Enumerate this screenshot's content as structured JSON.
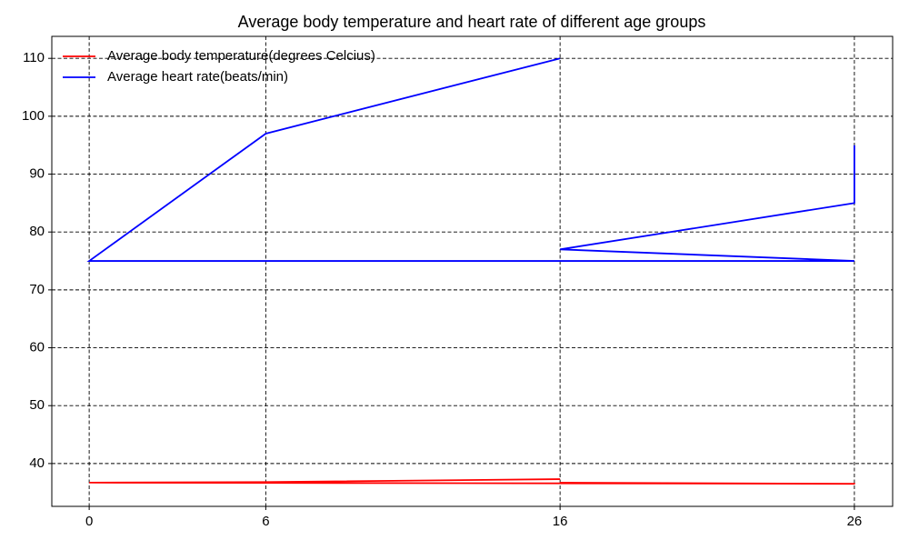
{
  "chart_data": {
    "type": "line",
    "title": "Average body temperature and heart rate of different age groups",
    "x": [
      26,
      26,
      16,
      26,
      0,
      6,
      16
    ],
    "series": [
      {
        "name": "Average body temperature(degrees Celcius)",
        "color": "#ff0000",
        "values": [
          36.4,
          36.5,
          36.7,
          36.5,
          36.7,
          36.8,
          37.3
        ]
      },
      {
        "name": "Average heart rate(beats/min)",
        "color": "#0000ff",
        "values": [
          95,
          85,
          77,
          75,
          75,
          97,
          110
        ]
      }
    ],
    "xlim": [
      -1.27,
      27.3
    ],
    "xticks": [
      0,
      6,
      16,
      26
    ],
    "ylim": [
      32.6,
      113.8
    ],
    "yticks": [
      40,
      50,
      60,
      70,
      80,
      90,
      100,
      110
    ],
    "grid": true,
    "legend": "upper-left"
  }
}
